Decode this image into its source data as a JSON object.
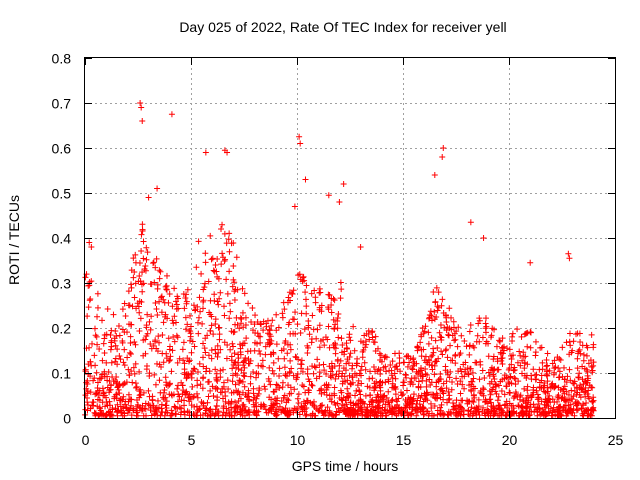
{
  "chart_data": {
    "type": "scatter",
    "title": "Day 025 of 2022, Rate Of TEC Index for receiver yell",
    "xlabel": "GPS time / hours",
    "ylabel": "ROTI / TECUs",
    "xlim": [
      0,
      25
    ],
    "ylim": [
      0,
      0.8
    ],
    "x_ticks": [
      "0",
      "5",
      "10",
      "15",
      "20",
      "25"
    ],
    "y_ticks": [
      "0",
      "0.1",
      "0.2",
      "0.3",
      "0.4",
      "0.5",
      "0.6",
      "0.7",
      "0.8"
    ],
    "grid": true,
    "marker": "plus",
    "color": "#ff0000",
    "notable_points": [
      {
        "x": 2.6,
        "y": 0.7
      },
      {
        "x": 2.65,
        "y": 0.69
      },
      {
        "x": 2.7,
        "y": 0.66
      },
      {
        "x": 4.1,
        "y": 0.675
      },
      {
        "x": 5.7,
        "y": 0.59
      },
      {
        "x": 6.6,
        "y": 0.595
      },
      {
        "x": 6.7,
        "y": 0.59
      },
      {
        "x": 10.1,
        "y": 0.625
      },
      {
        "x": 10.15,
        "y": 0.61
      },
      {
        "x": 10.4,
        "y": 0.53
      },
      {
        "x": 11.5,
        "y": 0.495
      },
      {
        "x": 12.2,
        "y": 0.52
      },
      {
        "x": 16.5,
        "y": 0.54
      },
      {
        "x": 16.9,
        "y": 0.6
      },
      {
        "x": 16.85,
        "y": 0.58
      },
      {
        "x": 18.2,
        "y": 0.435
      },
      {
        "x": 22.8,
        "y": 0.365
      },
      {
        "x": 22.85,
        "y": 0.355
      },
      {
        "x": 3.0,
        "y": 0.49
      },
      {
        "x": 3.4,
        "y": 0.51
      },
      {
        "x": 0.2,
        "y": 0.39
      },
      {
        "x": 0.3,
        "y": 0.38
      },
      {
        "x": 9.9,
        "y": 0.47
      },
      {
        "x": 12.0,
        "y": 0.48
      },
      {
        "x": 13.0,
        "y": 0.38
      },
      {
        "x": 18.8,
        "y": 0.4
      },
      {
        "x": 21.0,
        "y": 0.345
      }
    ],
    "density_envelope": [
      {
        "x": 0.0,
        "y": 0.35
      },
      {
        "x": 0.5,
        "y": 0.3
      },
      {
        "x": 1.0,
        "y": 0.26
      },
      {
        "x": 1.5,
        "y": 0.2
      },
      {
        "x": 2.0,
        "y": 0.28
      },
      {
        "x": 2.5,
        "y": 0.43
      },
      {
        "x": 3.0,
        "y": 0.42
      },
      {
        "x": 3.5,
        "y": 0.33
      },
      {
        "x": 4.0,
        "y": 0.31
      },
      {
        "x": 4.5,
        "y": 0.28
      },
      {
        "x": 5.0,
        "y": 0.3
      },
      {
        "x": 5.5,
        "y": 0.42
      },
      {
        "x": 6.0,
        "y": 0.4
      },
      {
        "x": 6.5,
        "y": 0.45
      },
      {
        "x": 7.0,
        "y": 0.38
      },
      {
        "x": 7.5,
        "y": 0.28
      },
      {
        "x": 8.0,
        "y": 0.26
      },
      {
        "x": 8.5,
        "y": 0.24
      },
      {
        "x": 9.0,
        "y": 0.22
      },
      {
        "x": 9.5,
        "y": 0.25
      },
      {
        "x": 10.0,
        "y": 0.34
      },
      {
        "x": 10.5,
        "y": 0.3
      },
      {
        "x": 11.0,
        "y": 0.29
      },
      {
        "x": 11.5,
        "y": 0.31
      },
      {
        "x": 12.0,
        "y": 0.33
      },
      {
        "x": 12.5,
        "y": 0.2
      },
      {
        "x": 13.0,
        "y": 0.17
      },
      {
        "x": 13.5,
        "y": 0.2
      },
      {
        "x": 14.0,
        "y": 0.14
      },
      {
        "x": 14.5,
        "y": 0.13
      },
      {
        "x": 15.0,
        "y": 0.14
      },
      {
        "x": 15.5,
        "y": 0.13
      },
      {
        "x": 16.0,
        "y": 0.22
      },
      {
        "x": 16.5,
        "y": 0.3
      },
      {
        "x": 17.0,
        "y": 0.26
      },
      {
        "x": 17.5,
        "y": 0.21
      },
      {
        "x": 18.0,
        "y": 0.2
      },
      {
        "x": 18.5,
        "y": 0.25
      },
      {
        "x": 19.0,
        "y": 0.22
      },
      {
        "x": 19.5,
        "y": 0.17
      },
      {
        "x": 20.0,
        "y": 0.18
      },
      {
        "x": 20.5,
        "y": 0.19
      },
      {
        "x": 21.0,
        "y": 0.2
      },
      {
        "x": 21.5,
        "y": 0.17
      },
      {
        "x": 22.0,
        "y": 0.14
      },
      {
        "x": 22.5,
        "y": 0.15
      },
      {
        "x": 23.0,
        "y": 0.2
      },
      {
        "x": 23.5,
        "y": 0.19
      },
      {
        "x": 24.0,
        "y": 0.17
      }
    ],
    "data_x_range": [
      0,
      24
    ]
  }
}
